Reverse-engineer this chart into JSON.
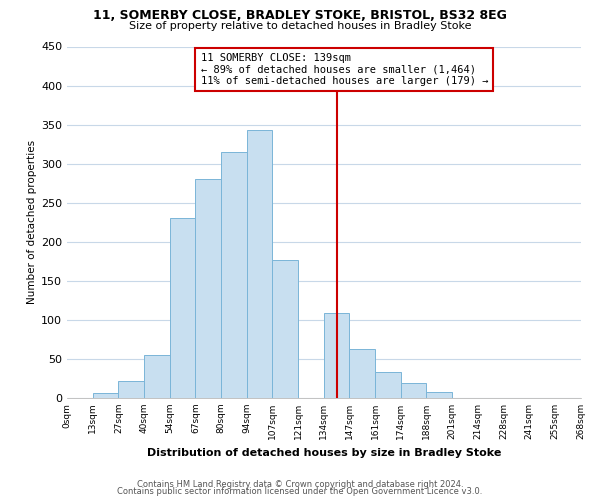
{
  "title1": "11, SOMERBY CLOSE, BRADLEY STOKE, BRISTOL, BS32 8EG",
  "title2": "Size of property relative to detached houses in Bradley Stoke",
  "xlabel": "Distribution of detached houses by size in Bradley Stoke",
  "ylabel": "Number of detached properties",
  "bin_labels": [
    "0sqm",
    "13sqm",
    "27sqm",
    "40sqm",
    "54sqm",
    "67sqm",
    "80sqm",
    "94sqm",
    "107sqm",
    "121sqm",
    "134sqm",
    "147sqm",
    "161sqm",
    "174sqm",
    "188sqm",
    "201sqm",
    "214sqm",
    "228sqm",
    "241sqm",
    "255sqm",
    "268sqm"
  ],
  "bar_values": [
    0,
    6,
    22,
    55,
    230,
    280,
    315,
    343,
    177,
    0,
    109,
    63,
    33,
    19,
    7,
    0,
    0,
    0,
    0,
    0
  ],
  "bar_color": "#c8dff0",
  "bar_edge_color": "#7ab5d8",
  "vline_x": 10.5,
  "vline_color": "#cc0000",
  "annotation_title": "11 SOMERBY CLOSE: 139sqm",
  "annotation_line1": "← 89% of detached houses are smaller (1,464)",
  "annotation_line2": "11% of semi-detached houses are larger (179) →",
  "annotation_box_color": "#ffffff",
  "annotation_box_edge": "#cc0000",
  "footer1": "Contains HM Land Registry data © Crown copyright and database right 2024.",
  "footer2": "Contains public sector information licensed under the Open Government Licence v3.0.",
  "ylim": [
    0,
    450
  ],
  "yticks": [
    0,
    50,
    100,
    150,
    200,
    250,
    300,
    350,
    400,
    450
  ],
  "bg_color": "#ffffff",
  "grid_color": "#c8d8e8"
}
